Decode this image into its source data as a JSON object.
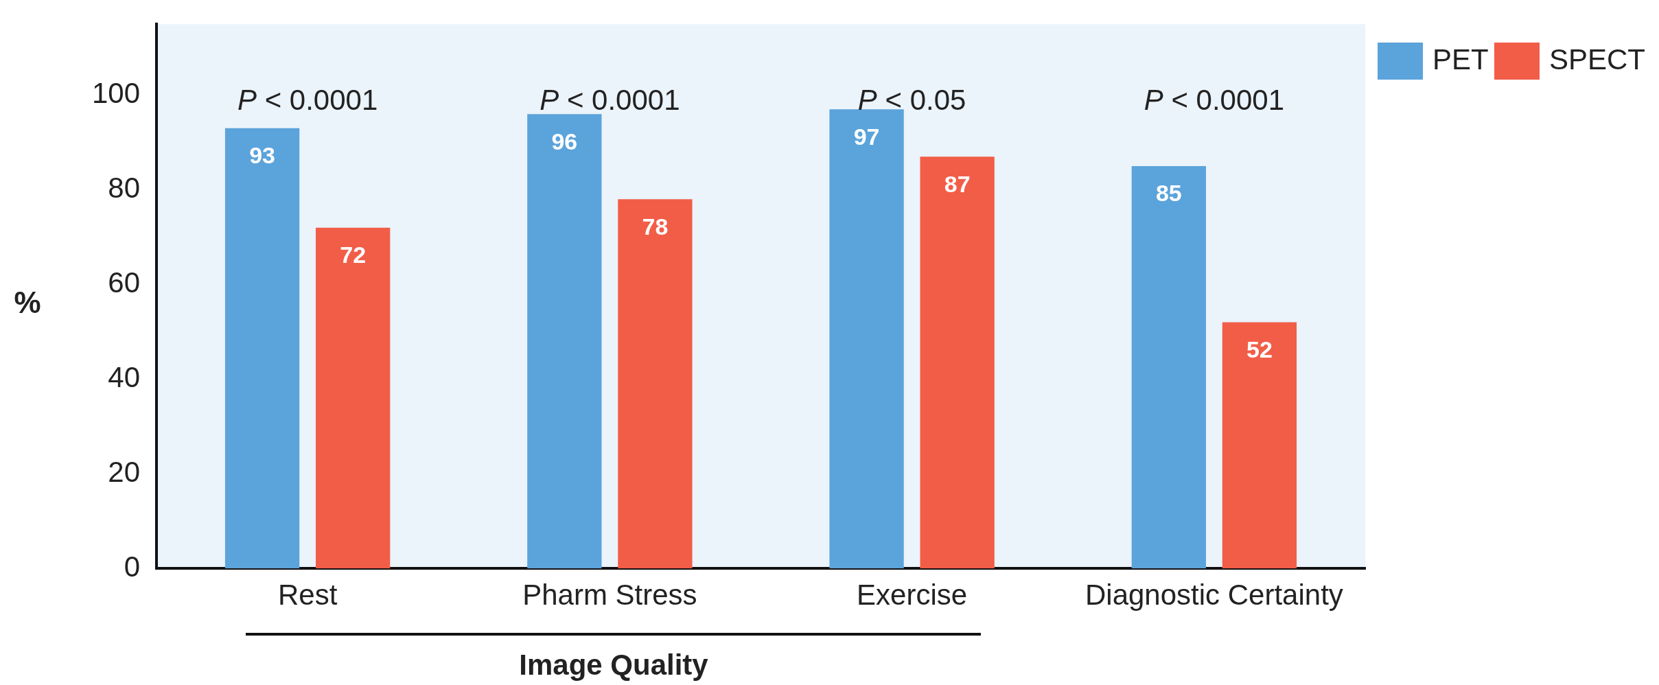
{
  "chart_data": {
    "type": "bar",
    "ylabel": "%",
    "categories": [
      "Rest",
      "Pharm Stress",
      "Exercise",
      "Diagnostic Certainty"
    ],
    "series": [
      {
        "name": "PET",
        "color": "#5ba3db",
        "values": [
          93,
          96,
          97,
          85
        ]
      },
      {
        "name": "SPECT",
        "color": "#f25d48",
        "values": [
          72,
          78,
          87,
          52
        ]
      }
    ],
    "ylim": [
      0,
      115
    ],
    "yticks": [
      0,
      20,
      40,
      60,
      80,
      100
    ],
    "grid": false,
    "legend": "top right",
    "data_labels": true,
    "annotations": [
      "P < 0.0001",
      "P < 0.0001",
      "P < 0.05",
      "P < 0.0001",
      "Image Quality"
    ]
  }
}
